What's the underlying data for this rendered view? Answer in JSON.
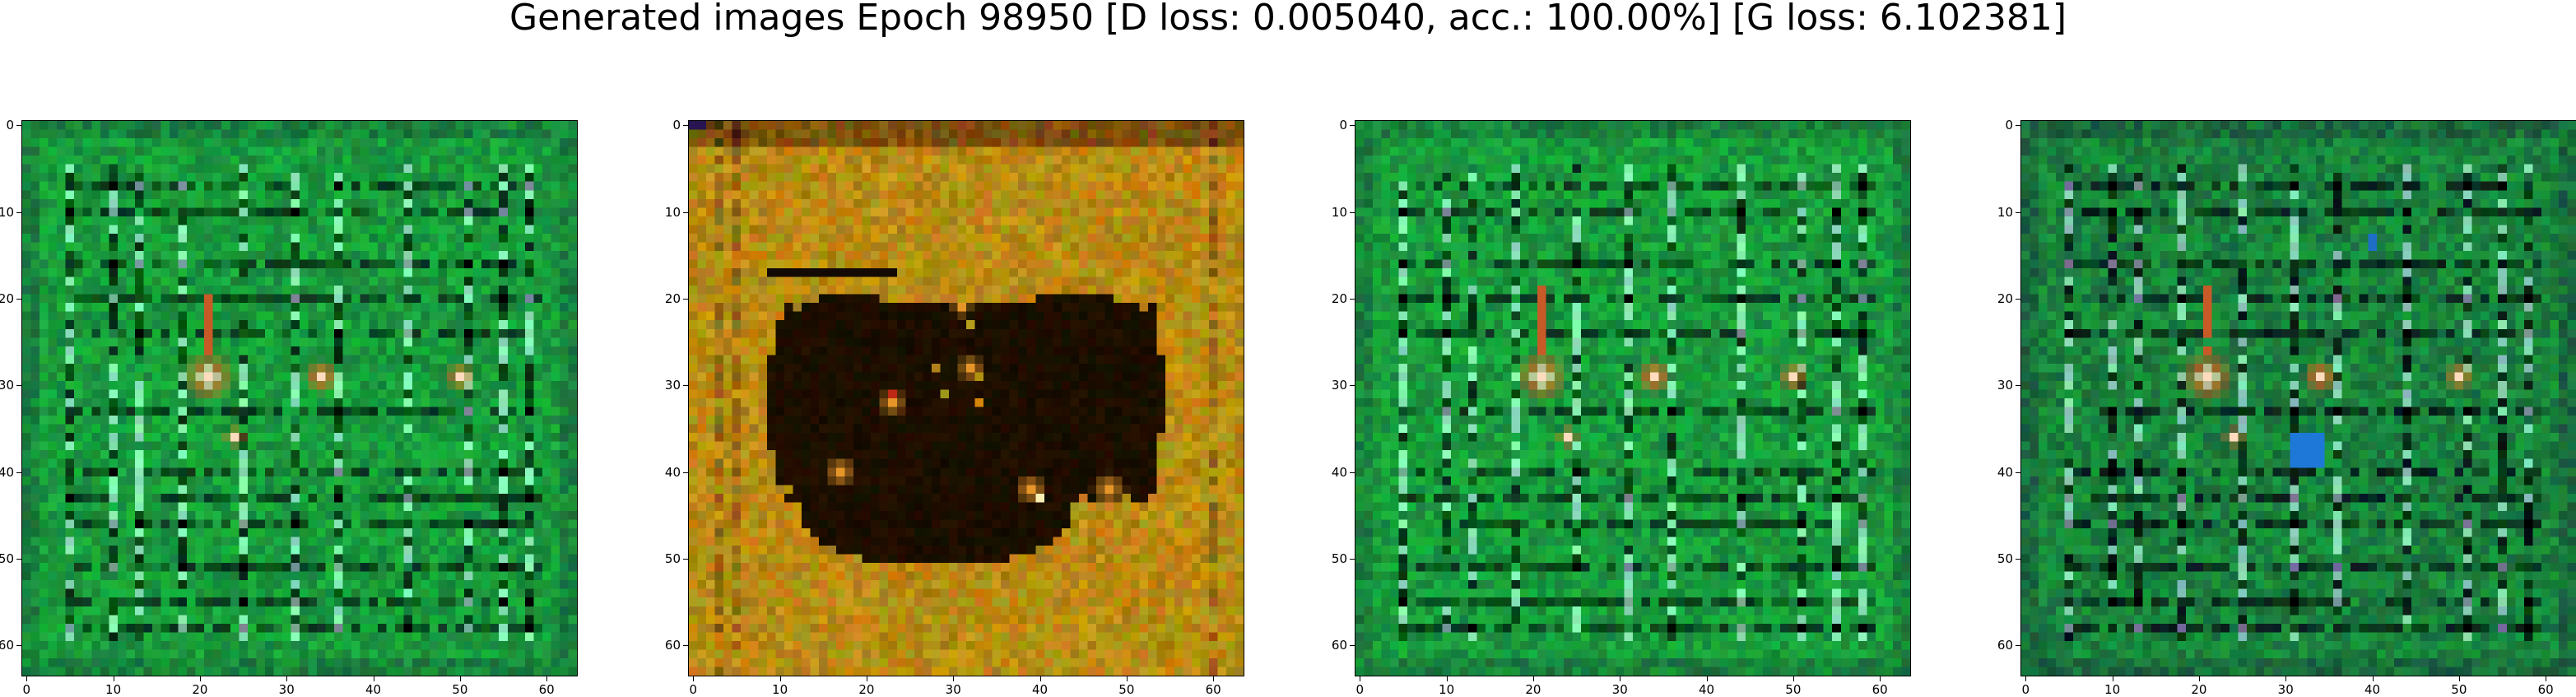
{
  "figure": {
    "title": "Generated images Epoch 98950 [D loss: 0.005040, acc.: 100.00%] [G loss: 6.102381]"
  },
  "axes": {
    "x_ticks": [
      "0",
      "10",
      "20",
      "30",
      "40",
      "50",
      "60"
    ],
    "y_ticks": [
      "0",
      "10",
      "20",
      "30",
      "40",
      "50",
      "60"
    ],
    "range": [
      0,
      64
    ]
  },
  "panels": [
    {
      "name": "generated-image-1",
      "style": "green",
      "hot_spots": true,
      "blue_spot": false
    },
    {
      "name": "generated-image-2",
      "style": "orange",
      "hot_spots": false,
      "blue_spot": false
    },
    {
      "name": "generated-image-3",
      "style": "green",
      "hot_spots": true,
      "blue_spot": false
    },
    {
      "name": "generated-image-4",
      "style": "green-dark",
      "hot_spots": true,
      "blue_spot": true
    }
  ],
  "colors": {
    "green_base": "#1f9e45",
    "green_dark": "#0b5f24",
    "orange_base": "#b8860b",
    "black_blob": "#0a0500",
    "hot_core": "#ffe4c4",
    "hot_red": "#e8531a",
    "blue_spot": "#1f7fd6"
  }
}
